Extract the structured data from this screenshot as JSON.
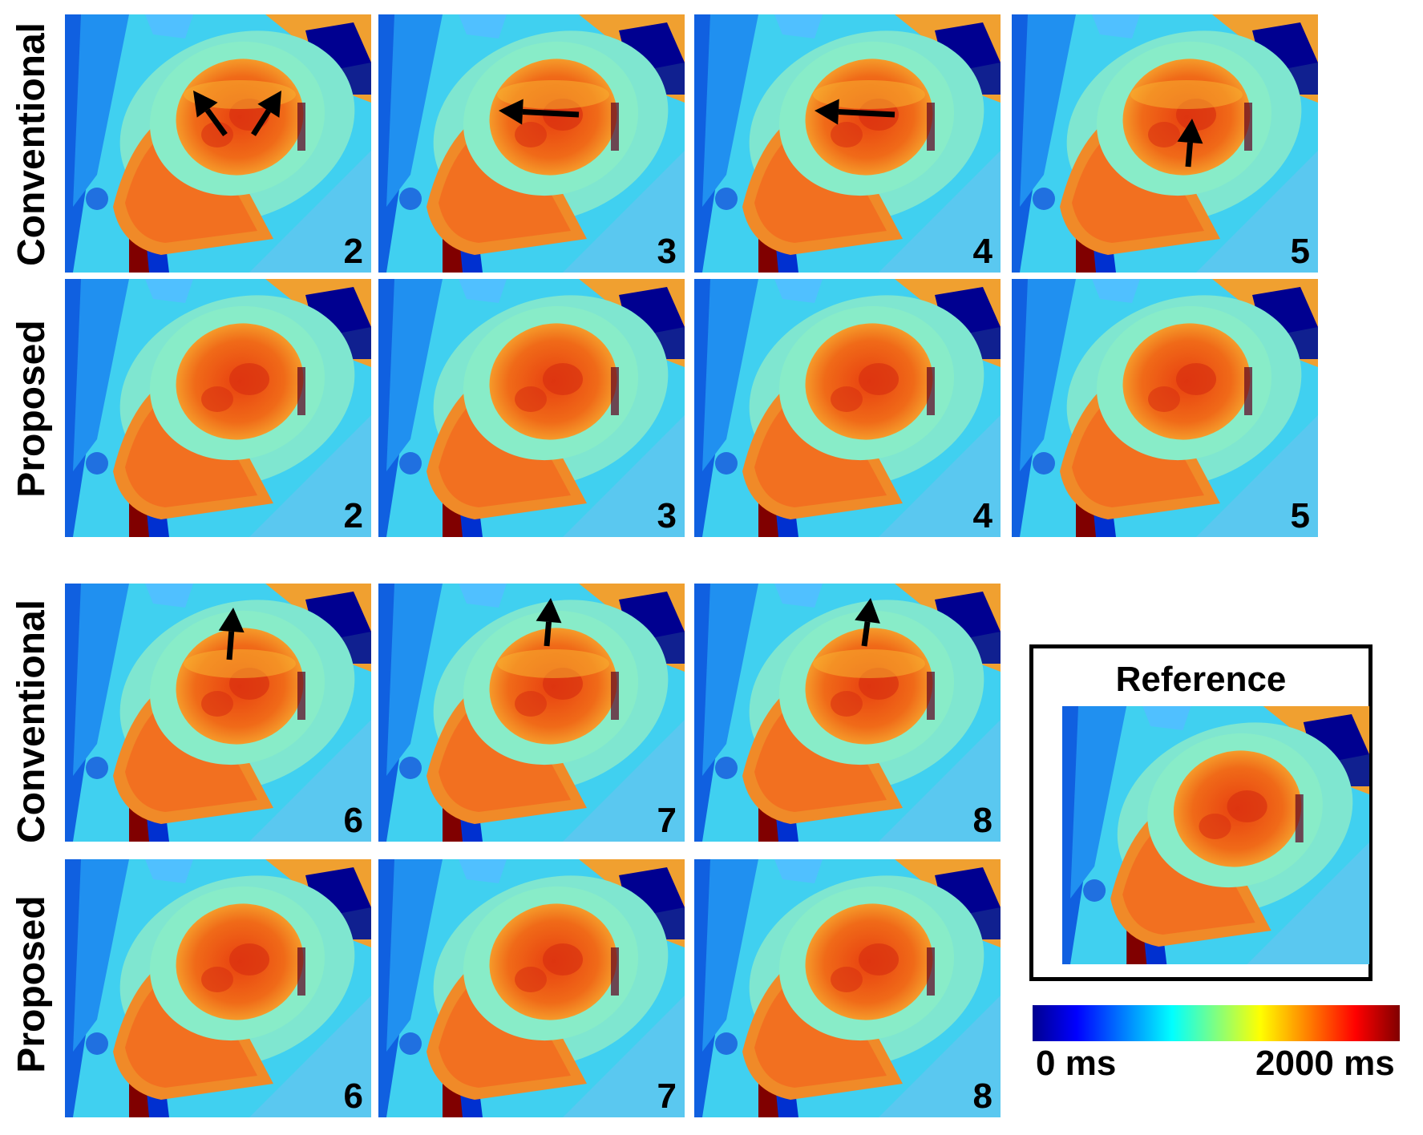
{
  "rows": [
    {
      "label": "Conventional"
    },
    {
      "label": "Proposed"
    },
    {
      "label": "Conventional"
    },
    {
      "label": "Proposed"
    }
  ],
  "panels": [
    {
      "number": "2",
      "method": "conventional",
      "arrows": 2
    },
    {
      "number": "3",
      "method": "conventional",
      "arrows": 1
    },
    {
      "number": "4",
      "method": "conventional",
      "arrows": 1
    },
    {
      "number": "5",
      "method": "conventional",
      "arrows": 1
    },
    {
      "number": "2",
      "method": "proposed",
      "arrows": 0
    },
    {
      "number": "3",
      "method": "proposed",
      "arrows": 0
    },
    {
      "number": "4",
      "method": "proposed",
      "arrows": 0
    },
    {
      "number": "5",
      "method": "proposed",
      "arrows": 0
    },
    {
      "number": "6",
      "method": "conventional",
      "arrows": 1
    },
    {
      "number": "7",
      "method": "conventional",
      "arrows": 1
    },
    {
      "number": "8",
      "method": "conventional",
      "arrows": 1
    },
    {
      "number": "6",
      "method": "proposed",
      "arrows": 0
    },
    {
      "number": "7",
      "method": "proposed",
      "arrows": 0
    },
    {
      "number": "8",
      "method": "proposed",
      "arrows": 0
    }
  ],
  "reference": {
    "title": "Reference"
  },
  "colorbar": {
    "min_label": "0 ms",
    "max_label": "2000 ms",
    "colormap": "jet",
    "colors": [
      "#00008f",
      "#0000ff",
      "#0080ff",
      "#00ffff",
      "#80ff80",
      "#ffff00",
      "#ff8000",
      "#ff0000",
      "#800000"
    ]
  }
}
